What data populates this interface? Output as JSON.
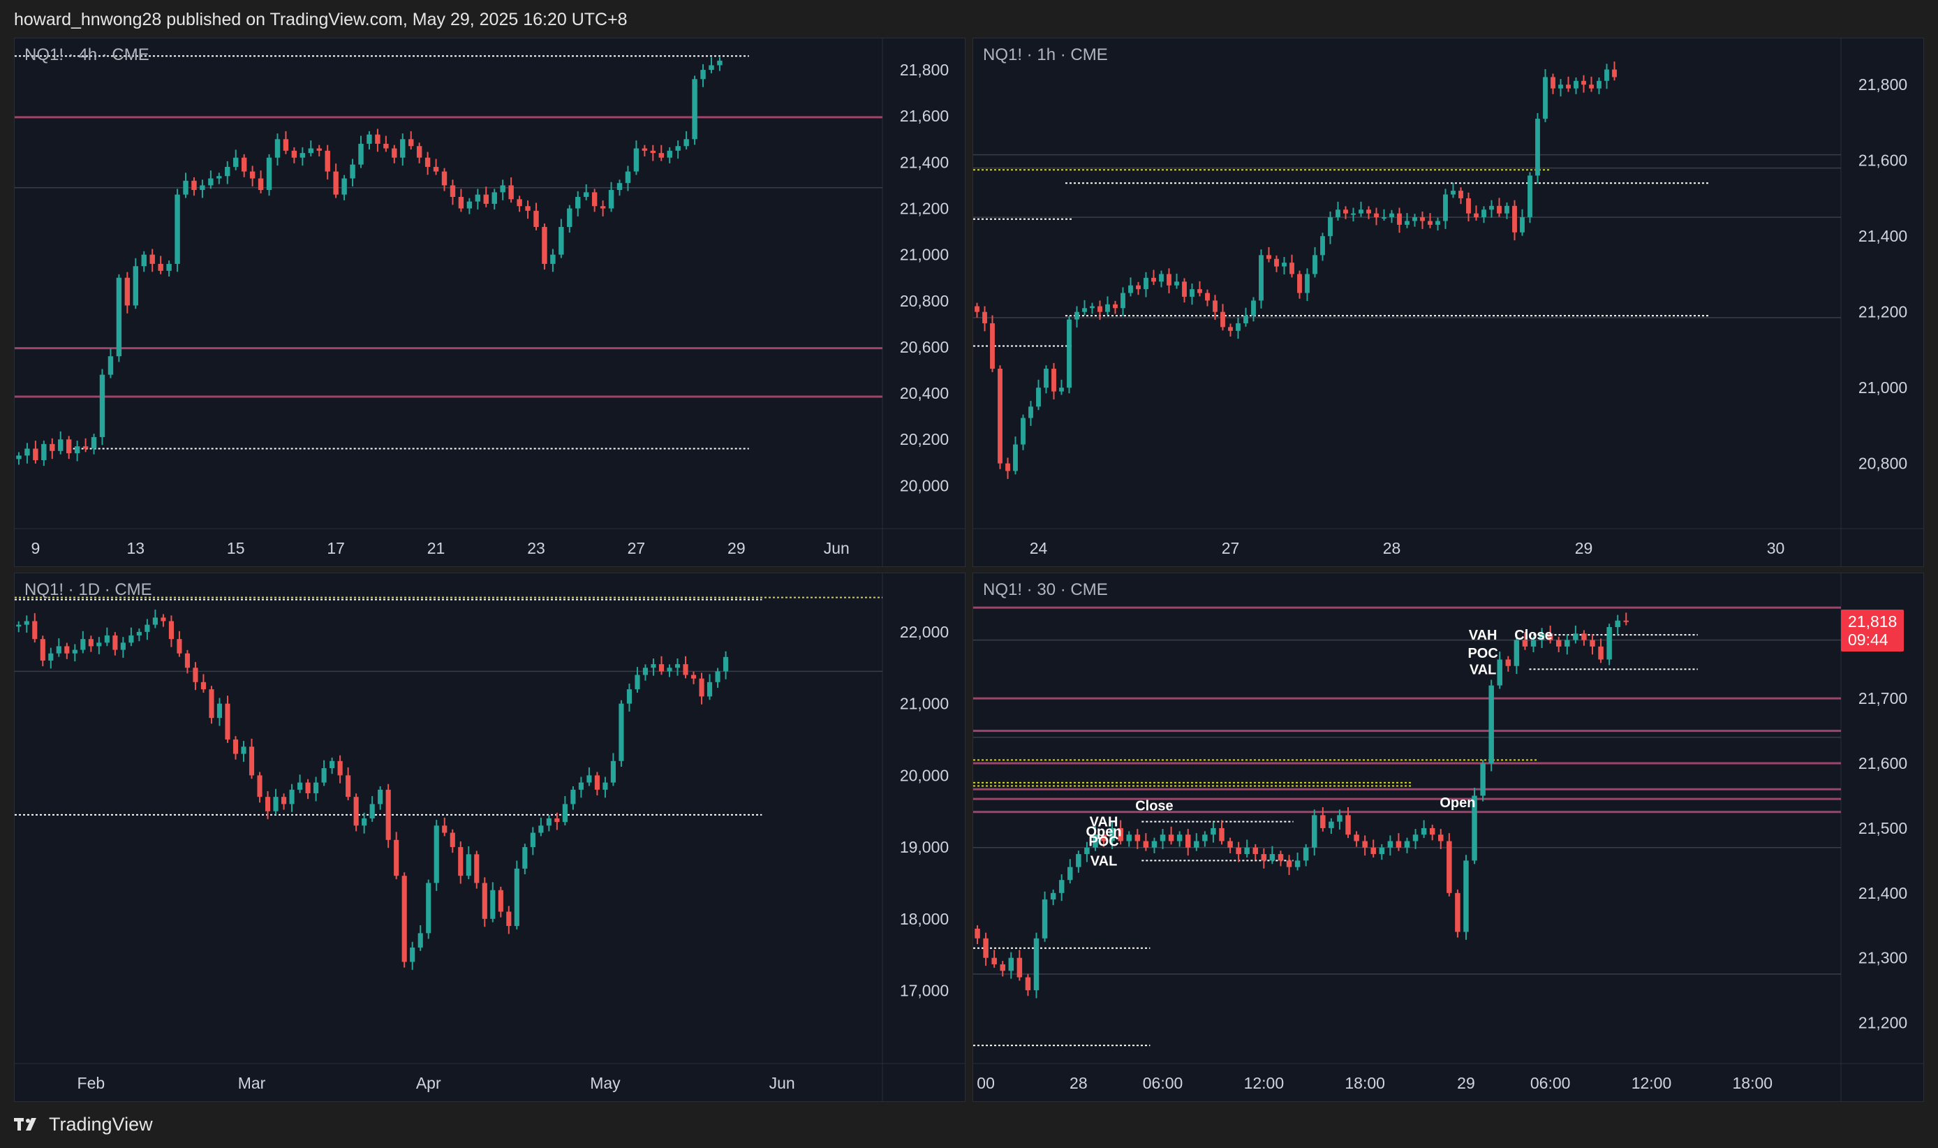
{
  "header": {
    "published": "howard_hnwong28 published on TradingView.com, May 29, 2025 16:20 UTC+8"
  },
  "footer": {
    "brand": "TradingView"
  },
  "colors": {
    "bg": "#131722",
    "up": "#26a69a",
    "down": "#ef5350",
    "level": "#a0446a",
    "dotted": "#ffffff",
    "yellow": "#d4d43a",
    "tag": "#f23645"
  },
  "chart_data": [
    {
      "id": "p1",
      "type": "candlestick",
      "title": "NQ1! · 4h · CME",
      "ylim": [
        19850,
        21900
      ],
      "yticks": [
        21800,
        21600,
        21400,
        21200,
        21000,
        20800,
        20600,
        20400,
        20200,
        20000
      ],
      "xticks": [
        {
          "label": "9",
          "i": 2
        },
        {
          "label": "13",
          "i": 14
        },
        {
          "label": "15",
          "i": 26
        },
        {
          "label": "17",
          "i": 38
        },
        {
          "label": "21",
          "i": 50
        },
        {
          "label": "23",
          "i": 62
        },
        {
          "label": "27",
          "i": 74
        },
        {
          "label": "29",
          "i": 86
        },
        {
          "label": "Jun",
          "i": 98
        }
      ],
      "n": 104,
      "hlevels": [
        21595,
        20595,
        20385
      ],
      "grayLevels": [
        21290
      ],
      "dotted": [
        {
          "y": 21860,
          "from": 0,
          "to": 88
        },
        {
          "y": 20160,
          "from": 7,
          "to": 88
        }
      ],
      "closes": [
        20130,
        20160,
        20110,
        20180,
        20150,
        20200,
        20140,
        20170,
        20160,
        20210,
        20480,
        20560,
        20900,
        20780,
        20950,
        21000,
        20960,
        20930,
        20960,
        21260,
        21320,
        21280,
        21300,
        21330,
        21340,
        21380,
        21420,
        21360,
        21330,
        21280,
        21420,
        21500,
        21450,
        21420,
        21440,
        21460,
        21450,
        21360,
        21260,
        21330,
        21390,
        21480,
        21520,
        21480,
        21460,
        21420,
        21500,
        21470,
        21420,
        21380,
        21360,
        21300,
        21250,
        21200,
        21230,
        21260,
        21220,
        21270,
        21300,
        21240,
        21210,
        21190,
        21120,
        20960,
        21000,
        21120,
        21200,
        21250,
        21270,
        21210,
        21200,
        21280,
        21310,
        21360,
        21460,
        21450,
        21440,
        21420,
        21450,
        21470,
        21500,
        21760,
        21800,
        21820,
        21840
      ]
    },
    {
      "id": "p2",
      "type": "candlestick",
      "title": "NQ1! · 1h · CME",
      "ylim": [
        20650,
        21900
      ],
      "yticks": [
        21800,
        21600,
        21400,
        21200,
        21000,
        20800
      ],
      "xticks": [
        {
          "label": "24",
          "i": 8
        },
        {
          "label": "27",
          "i": 33
        },
        {
          "label": "28",
          "i": 54
        },
        {
          "label": "29",
          "i": 79
        },
        {
          "label": "30",
          "i": 104
        }
      ],
      "n": 113,
      "hlevels": [],
      "grayLevels": [
        21615,
        21580,
        21450,
        21185
      ],
      "dotted": [
        {
          "y": 21540,
          "from": 12,
          "to": 96
        },
        {
          "y": 21190,
          "from": 12,
          "to": 96
        },
        {
          "y": 21445,
          "from": 0,
          "to": 13
        },
        {
          "y": 21110,
          "from": 0,
          "to": 13
        }
      ],
      "yellowDotted": [
        {
          "y": 21575,
          "from": 0,
          "to": 75
        }
      ],
      "closes": [
        21200,
        21170,
        21050,
        20800,
        20780,
        20850,
        20920,
        20950,
        21000,
        21050,
        20990,
        21000,
        21180,
        21200,
        21210,
        21215,
        21200,
        21220,
        21210,
        21250,
        21270,
        21260,
        21290,
        21280,
        21300,
        21270,
        21280,
        21240,
        21260,
        21250,
        21230,
        21200,
        21160,
        21150,
        21170,
        21190,
        21230,
        21350,
        21340,
        21320,
        21330,
        21300,
        21250,
        21300,
        21350,
        21400,
        21450,
        21470,
        21460,
        21460,
        21470,
        21460,
        21450,
        21450,
        21460,
        21430,
        21440,
        21450,
        21440,
        21430,
        21440,
        21510,
        21520,
        21500,
        21460,
        21450,
        21470,
        21480,
        21460,
        21480,
        21410,
        21450,
        21560,
        21710,
        21820,
        21790,
        21800,
        21790,
        21810,
        21800,
        21790,
        21810,
        21840,
        21820
      ]
    },
    {
      "id": "p3",
      "type": "candlestick",
      "title": "NQ1! · 1D · CME",
      "ylim": [
        16100,
        22700
      ],
      "yticks": [
        22000,
        21000,
        20000,
        19000,
        18000,
        17000
      ],
      "xticks": [
        {
          "label": "Feb",
          "i": 9
        },
        {
          "label": "Mar",
          "i": 29
        },
        {
          "label": "Apr",
          "i": 51
        },
        {
          "label": "May",
          "i": 73
        },
        {
          "label": "Jun",
          "i": 95
        }
      ],
      "n": 108,
      "hlevels": [],
      "grayLevels": [
        21450
      ],
      "dotted": [
        {
          "y": 22450,
          "from": 0,
          "to": 93
        },
        {
          "y": 19450,
          "from": 0,
          "to": 93
        }
      ],
      "yellowDotted": [
        {
          "y": 22480,
          "from": 0,
          "to": 108
        }
      ],
      "closes": [
        22100,
        22150,
        21900,
        21600,
        21700,
        21800,
        21700,
        21750,
        21900,
        21800,
        21850,
        21950,
        21750,
        21850,
        21950,
        22000,
        22100,
        22200,
        22150,
        21900,
        21700,
        21500,
        21300,
        21200,
        20800,
        21000,
        20500,
        20300,
        20400,
        20000,
        19700,
        19500,
        19700,
        19600,
        19800,
        19900,
        19750,
        19900,
        20100,
        20200,
        20000,
        19700,
        19300,
        19400,
        19600,
        19800,
        19100,
        18600,
        17400,
        17600,
        17800,
        18500,
        19300,
        19200,
        19000,
        18600,
        18900,
        18500,
        18000,
        18400,
        18100,
        17900,
        18700,
        19000,
        19200,
        19300,
        19400,
        19350,
        19600,
        19800,
        19900,
        20000,
        19800,
        19900,
        20200,
        21000,
        21200,
        21400,
        21500,
        21550,
        21450,
        21500,
        21550,
        21400,
        21350,
        21100,
        21300,
        21450,
        21650
      ]
    },
    {
      "id": "p4",
      "type": "candlestick",
      "title": "NQ1! · 30 · CME",
      "ylim": [
        21150,
        21880
      ],
      "yticks": [
        21700,
        21600,
        21500,
        21400,
        21300,
        21200
      ],
      "xticks": [
        {
          "label": "00",
          "i": 1
        },
        {
          "label": "28",
          "i": 12
        },
        {
          "label": "06:00",
          "i": 22
        },
        {
          "label": "12:00",
          "i": 34
        },
        {
          "label": "18:00",
          "i": 46
        },
        {
          "label": "29",
          "i": 58
        },
        {
          "label": "06:00",
          "i": 68
        },
        {
          "label": "12:00",
          "i": 80
        },
        {
          "label": "18:00",
          "i": 92
        }
      ],
      "n": 103,
      "hlevels": [
        21840,
        21700,
        21650,
        21600,
        21560,
        21545,
        21525
      ],
      "grayLevels": [
        21790,
        21470,
        21275,
        21640
      ],
      "dotted": [
        {
          "y": 21315,
          "from": 0,
          "to": 21
        },
        {
          "y": 21165,
          "from": 0,
          "to": 21
        },
        {
          "y": 21510,
          "from": 20,
          "to": 38
        },
        {
          "y": 21450,
          "from": 20,
          "to": 38
        },
        {
          "y": 21745,
          "from": 66,
          "to": 86
        },
        {
          "y": 21798,
          "from": 66,
          "to": 86
        }
      ],
      "yellowDotted": [
        {
          "y": 21605,
          "from": 0,
          "to": 67
        },
        {
          "y": 21570,
          "from": 0,
          "to": 52
        },
        {
          "y": 21565,
          "from": 0,
          "to": 52
        }
      ],
      "closes": [
        21330,
        21300,
        21290,
        21280,
        21300,
        21270,
        21250,
        21330,
        21390,
        21400,
        21420,
        21440,
        21460,
        21470,
        21490,
        21480,
        21500,
        21480,
        21490,
        21480,
        21470,
        21480,
        21490,
        21480,
        21490,
        21470,
        21480,
        21490,
        21500,
        21480,
        21470,
        21460,
        21470,
        21460,
        21450,
        21460,
        21450,
        21440,
        21450,
        21470,
        21520,
        21500,
        21510,
        21520,
        21490,
        21480,
        21470,
        21460,
        21470,
        21480,
        21470,
        21480,
        21490,
        21500,
        21490,
        21480,
        21400,
        21340,
        21450,
        21550,
        21600,
        21720,
        21760,
        21750,
        21790,
        21780,
        21790,
        21800,
        21790,
        21780,
        21790,
        21800,
        21790,
        21780,
        21760,
        21810,
        21820,
        21818
      ],
      "profileLabels": [
        {
          "text": "VAH",
          "i": 15,
          "y": 21510
        },
        {
          "text": "Open",
          "i": 15,
          "y": 21495
        },
        {
          "text": "POC",
          "i": 15,
          "y": 21480
        },
        {
          "text": "VAL",
          "i": 15,
          "y": 21450
        },
        {
          "text": "Close",
          "i": 21,
          "y": 21535
        },
        {
          "text": "Open",
          "i": 57,
          "y": 21540
        },
        {
          "text": "VAH",
          "i": 60,
          "y": 21798
        },
        {
          "text": "POC",
          "i": 60,
          "y": 21770
        },
        {
          "text": "VAL",
          "i": 60,
          "y": 21745
        },
        {
          "text": "Close",
          "i": 66,
          "y": 21798
        }
      ],
      "lastPrice": "21,818",
      "countdown": "09:44"
    }
  ]
}
